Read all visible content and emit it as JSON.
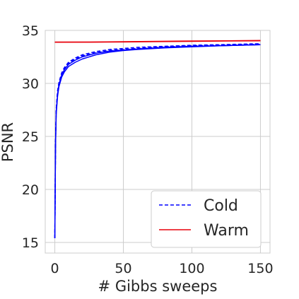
{
  "chart_data": {
    "type": "line",
    "title": "",
    "xlabel": "# Gibbs sweeps",
    "ylabel": "PSNR",
    "xlim": [
      -7,
      157
    ],
    "ylim": [
      14,
      35
    ],
    "xticks": [
      0,
      50,
      100,
      150
    ],
    "yticks": [
      15,
      20,
      25,
      30,
      35
    ],
    "grid": true,
    "legend": "lower-right",
    "series": [
      {
        "name": "Cold",
        "color": "#0000ff",
        "style": "dashed",
        "runs": [
          {
            "x": [
              0,
              0.5,
              1,
              2,
              3,
              5,
              7,
              10,
              15,
              20,
              30,
              40,
              50,
              60,
              80,
              100,
              120,
              150
            ],
            "y": [
              15.4,
              24.5,
              27.6,
              29.3,
              30.1,
              31.0,
              31.5,
              32.0,
              32.4,
              32.7,
              33.0,
              33.2,
              33.3,
              33.4,
              33.5,
              33.6,
              33.65,
              33.75
            ]
          },
          {
            "x": [
              0,
              0.5,
              1,
              2,
              3,
              5,
              7,
              10,
              15,
              20,
              30,
              40,
              50,
              60,
              80,
              100,
              120,
              150
            ],
            "y": [
              15.4,
              24.4,
              27.5,
              29.2,
              30.0,
              30.9,
              31.4,
              31.9,
              32.3,
              32.6,
              32.9,
              33.1,
              33.2,
              33.3,
              33.45,
              33.55,
              33.6,
              33.7
            ]
          }
        ]
      },
      {
        "name": "",
        "color": "#0000ff",
        "style": "solid",
        "runs": [
          {
            "x": [
              0,
              0.5,
              1,
              2,
              3,
              5,
              7,
              10,
              15,
              20,
              30,
              40,
              50,
              60,
              80,
              100,
              120,
              150
            ],
            "y": [
              15.4,
              24.2,
              27.3,
              29.0,
              29.9,
              30.8,
              31.3,
              31.8,
              32.2,
              32.5,
              32.85,
              33.05,
              33.15,
              33.25,
              33.4,
              33.5,
              33.55,
              33.65
            ]
          },
          {
            "x": [
              0,
              0.5,
              1,
              2,
              3,
              5,
              7,
              10,
              15,
              20,
              30,
              40,
              50,
              60,
              80,
              100,
              120,
              150
            ],
            "y": [
              15.4,
              24.0,
              27.1,
              28.8,
              29.7,
              30.6,
              31.1,
              31.6,
              32.0,
              32.3,
              32.7,
              32.95,
              33.1,
              33.2,
              33.35,
              33.45,
              33.55,
              33.65
            ]
          }
        ]
      },
      {
        "name": "Warm",
        "color": "#e8000b",
        "style": "solid",
        "runs": [
          {
            "x": [
              0,
              25,
              50,
              75,
              100,
              125,
              150
            ],
            "y": [
              33.9,
              33.9,
              33.93,
              33.97,
              34.0,
              34.02,
              34.05
            ]
          },
          {
            "x": [
              0,
              25,
              50,
              75,
              100,
              125,
              150
            ],
            "y": [
              33.88,
              33.89,
              33.91,
              33.94,
              33.97,
              34.0,
              34.02
            ]
          }
        ]
      }
    ]
  }
}
